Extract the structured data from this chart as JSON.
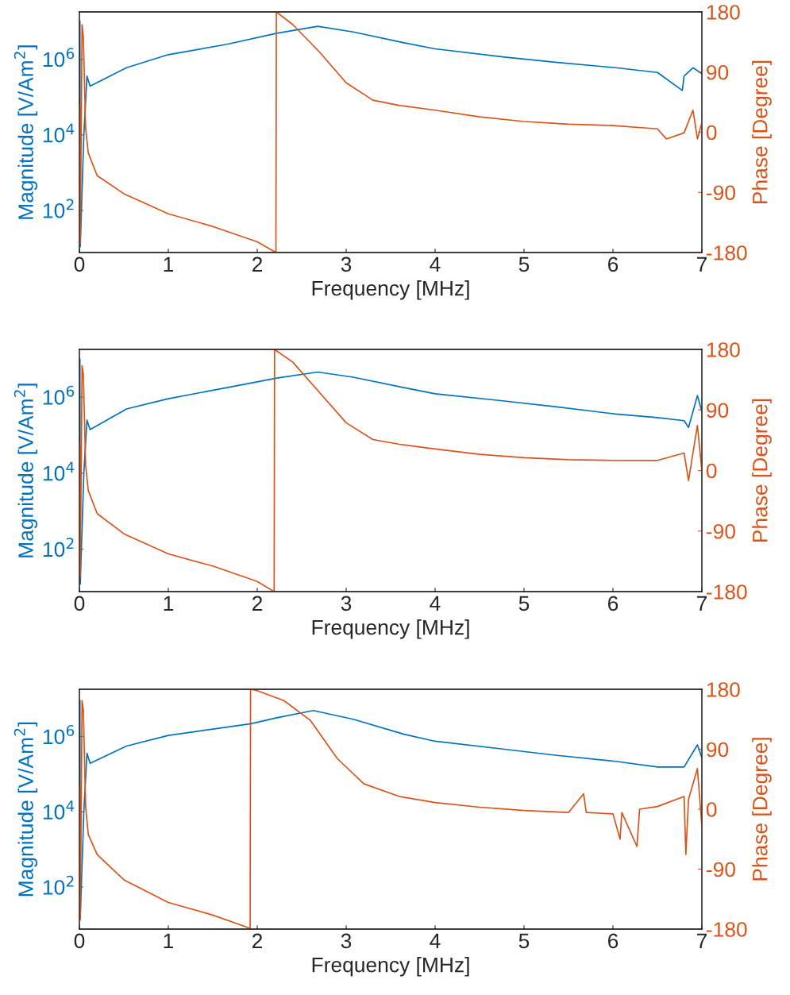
{
  "chart_data": [
    {
      "type": "line",
      "xlabel": "Frequency [MHz]",
      "ylabel": "Magnitude [V/Am$^{2}$]",
      "y2label": "Phase [Degree]",
      "log": "y",
      "grid": false,
      "xlim": [
        0,
        7
      ],
      "xticks": [
        0,
        1,
        2,
        3,
        4,
        5,
        6,
        7
      ],
      "ylim": [
        7.7,
        18000000
      ],
      "yticks": [
        {
          "value": 100,
          "label": "10$^{2}$"
        },
        {
          "value": 10000,
          "label": "10$^{4}$"
        },
        {
          "value": 1000000,
          "label": "10$^{6}$"
        }
      ],
      "y2lim": [
        -180,
        180
      ],
      "y2ticks": [
        -180,
        -90,
        0,
        90,
        180
      ],
      "series": [
        {
          "color": "#0072bd",
          "x": [
            0.006,
            0.01,
            0.05,
            0.085,
            0.12,
            0.53,
            1.0,
            1.66,
            2.22,
            2.68,
            3.08,
            3.65,
            4.0,
            4.78,
            5.35,
            6.03,
            6.5,
            6.78,
            6.8,
            6.9,
            7.0
          ],
          "values": [
            10000000,
            11,
            10000,
            360000,
            195000,
            600000,
            1330000,
            2500000,
            4900000,
            7500000,
            5300000,
            2750000,
            1900000,
            1150000,
            840000,
            600000,
            450000,
            150000,
            360000,
            600000,
            420000
          ]
        },
        {
          "color": "#d95319",
          "axis": "y2",
          "x": [
            0.005,
            0.01,
            0.03,
            0.045,
            0.07,
            0.1,
            0.2,
            0.5,
            1.0,
            1.5,
            2.0,
            2.21,
            2.215,
            2.4,
            2.7,
            3.0,
            3.3,
            3.6,
            4.0,
            4.5,
            5.0,
            5.5,
            6.0,
            6.5,
            6.6,
            6.8,
            6.9,
            6.95,
            7.0
          ],
          "values": [
            40,
            -167,
            161,
            142,
            6,
            -31,
            -65,
            -92,
            -122,
            -141,
            -164,
            -180,
            180,
            161,
            120,
            74,
            48,
            40,
            33,
            23,
            16,
            12,
            10,
            5,
            -10,
            -1,
            33,
            -10,
            14
          ]
        }
      ]
    },
    {
      "type": "line",
      "xlabel": "Frequency [MHz]",
      "ylabel": "Magnitude [V/Am$^{2}$]",
      "y2label": "Phase [Degree]",
      "log": "y",
      "grid": false,
      "xlim": [
        0,
        7
      ],
      "xticks": [
        0,
        1,
        2,
        3,
        4,
        5,
        6,
        7
      ],
      "ylim": [
        7.7,
        18000000
      ],
      "yticks": [
        {
          "value": 100,
          "label": "10$^{2}$"
        },
        {
          "value": 10000,
          "label": "10$^{4}$"
        },
        {
          "value": 1000000,
          "label": "10$^{6}$"
        }
      ],
      "y2lim": [
        -180,
        180
      ],
      "y2ticks": [
        -180,
        -90,
        0,
        90,
        180
      ],
      "series": [
        {
          "color": "#0072bd",
          "x": [
            0.006,
            0.01,
            0.05,
            0.085,
            0.12,
            0.53,
            1.0,
            1.66,
            2.22,
            2.68,
            3.08,
            3.65,
            4.0,
            4.78,
            5.35,
            6.03,
            6.5,
            6.8,
            6.85,
            6.95,
            7.0
          ],
          "values": [
            10000000,
            12,
            10000,
            250000,
            140000,
            490000,
            910000,
            1780000,
            3160000,
            4570000,
            3350000,
            1780000,
            1230000,
            790000,
            560000,
            360000,
            290000,
            240000,
            160000,
            1100000,
            420000
          ]
        },
        {
          "color": "#d95319",
          "axis": "y2",
          "x": [
            0.005,
            0.01,
            0.03,
            0.045,
            0.07,
            0.1,
            0.2,
            0.5,
            1.0,
            1.5,
            2.0,
            2.19,
            2.195,
            2.4,
            2.7,
            3.0,
            3.3,
            3.6,
            4.0,
            4.5,
            5.0,
            5.5,
            6.0,
            6.5,
            6.8,
            6.85,
            6.95,
            7.0
          ],
          "values": [
            41,
            -157,
            156,
            142,
            8,
            -30,
            -64,
            -94,
            -124,
            -142,
            -165,
            -180,
            180,
            161,
            116,
            71,
            46,
            39,
            32,
            24,
            19,
            16,
            15,
            15,
            26,
            -15,
            67,
            0
          ]
        }
      ]
    },
    {
      "type": "line",
      "xlabel": "Frequency [MHz]",
      "ylabel": "Magnitude [V/Am$^{2}$]",
      "y2label": "Phase [Degree]",
      "log": "y",
      "grid": false,
      "xlim": [
        0,
        7
      ],
      "xticks": [
        0,
        1,
        2,
        3,
        4,
        5,
        6,
        7
      ],
      "ylim": [
        7.7,
        18000000
      ],
      "yticks": [
        {
          "value": 100,
          "label": "10$^{2}$"
        },
        {
          "value": 10000,
          "label": "10$^{4}$"
        },
        {
          "value": 1000000,
          "label": "10$^{6}$"
        }
      ],
      "y2lim": [
        -180,
        180
      ],
      "y2ticks": [
        -180,
        -90,
        0,
        90,
        180
      ],
      "series": [
        {
          "color": "#0072bd",
          "x": [
            0.006,
            0.01,
            0.05,
            0.085,
            0.12,
            0.53,
            1.0,
            1.66,
            1.93,
            2.22,
            2.63,
            3.08,
            3.65,
            4.0,
            4.78,
            5.35,
            6.03,
            6.5,
            6.8,
            6.95,
            7.0
          ],
          "values": [
            9100000,
            15,
            10000,
            360000,
            195000,
            560000,
            1070000,
            1780000,
            2190000,
            3160000,
            4900000,
            2880000,
            1150000,
            750000,
            460000,
            320000,
            220000,
            155000,
            155000,
            600000,
            275000
          ]
        },
        {
          "color": "#d95319",
          "axis": "y2",
          "x": [
            0.005,
            0.01,
            0.03,
            0.045,
            0.07,
            0.1,
            0.2,
            0.5,
            1.0,
            1.5,
            1.9,
            1.92,
            1.925,
            2.0,
            2.3,
            2.6,
            2.9,
            3.2,
            3.6,
            4.0,
            4.5,
            5.0,
            5.5,
            5.67,
            5.7,
            6.0,
            6.08,
            6.1,
            6.27,
            6.3,
            6.5,
            6.8,
            6.82,
            6.85,
            6.95,
            7.0
          ],
          "values": [
            34,
            -166,
            163,
            148,
            4,
            -38,
            -68,
            -106,
            -140,
            -159,
            -178,
            -180,
            180,
            178,
            163,
            133,
            76,
            38,
            19,
            10,
            3,
            -2,
            -5,
            23,
            -5,
            -7,
            -45,
            -5,
            -56,
            0,
            4,
            19,
            -68,
            15,
            61,
            -26
          ]
        }
      ]
    }
  ]
}
